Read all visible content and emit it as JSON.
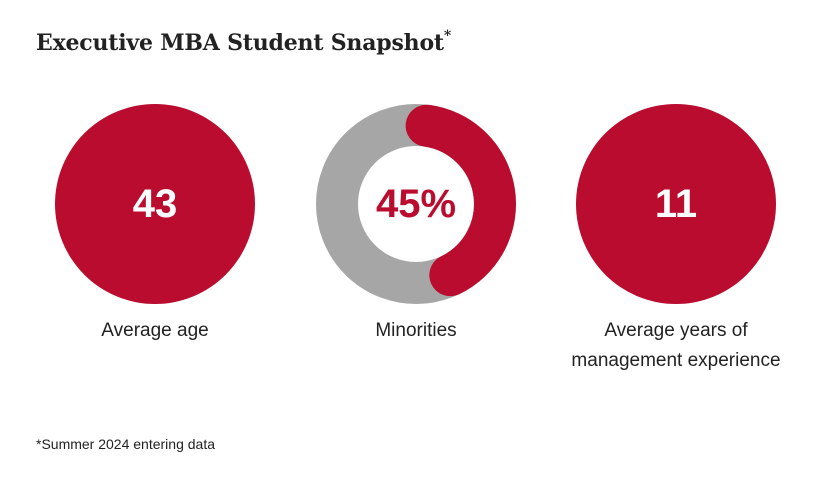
{
  "header": {
    "title": "Executive MBA Student Snapshot",
    "title_mark": "*"
  },
  "chart_data": {
    "type": "donut",
    "title": "Executive MBA Student Snapshot*",
    "colors": {
      "accent": "#ba0c2f",
      "track": "#a6a6a6"
    },
    "stats": [
      {
        "value": 43,
        "display": "43",
        "label": "Average age",
        "style": "solid-circle"
      },
      {
        "value": 45,
        "unit": "%",
        "display": "45%",
        "label": "Minorities",
        "style": "donut",
        "fraction": 0.45
      },
      {
        "value": 11,
        "display": "11",
        "label": "Average years of management experience",
        "style": "solid-circle"
      }
    ]
  },
  "footnote": "*Summer 2024 entering data"
}
